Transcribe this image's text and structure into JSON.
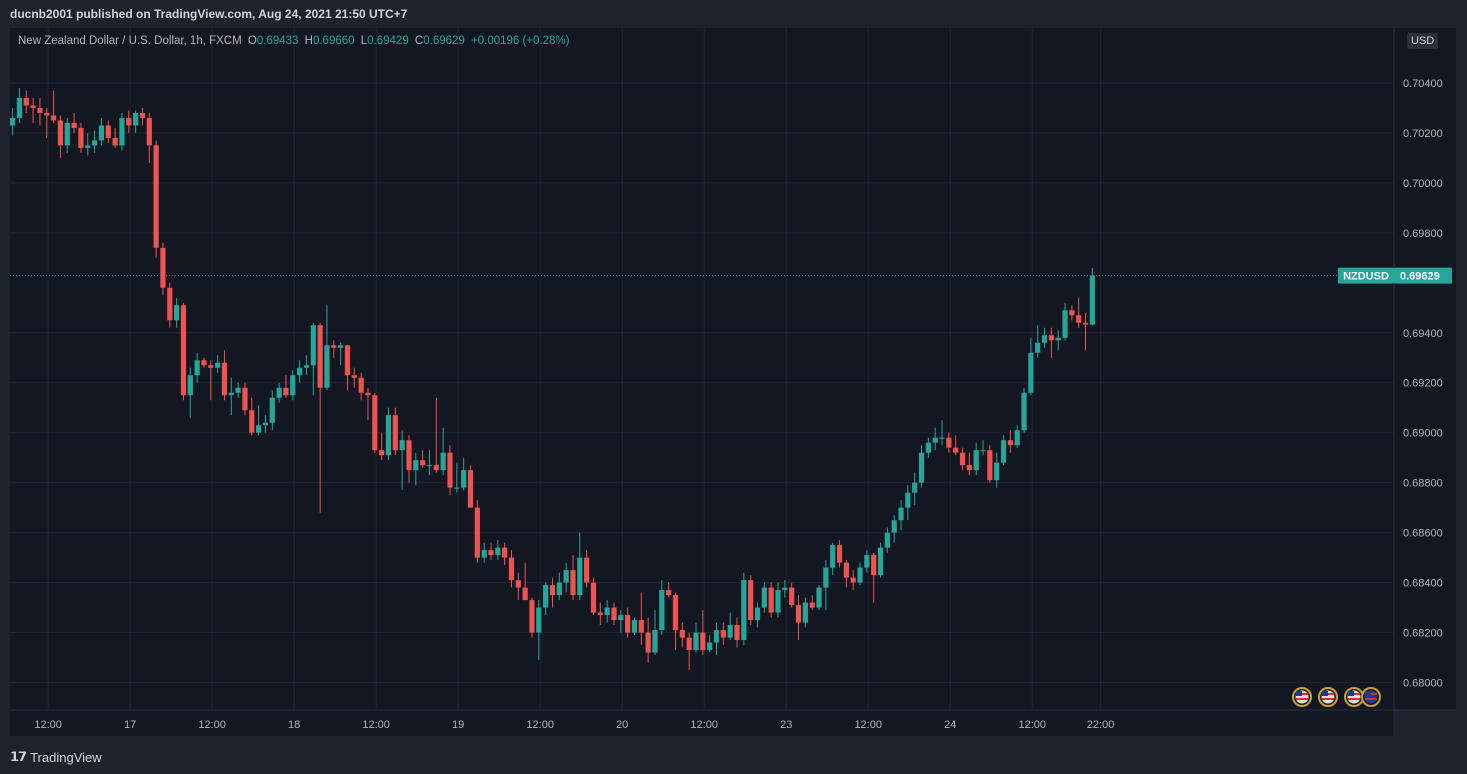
{
  "header": {
    "published": "ducnb2001 published on TradingView.com, Aug 24, 2021 21:50 UTC+7"
  },
  "legend": {
    "title": "New Zealand Dollar / U.S. Dollar, 1h, FXCM",
    "open_label": "O",
    "open": "0.69433",
    "high_label": "H",
    "high": "0.69660",
    "low_label": "L",
    "low": "0.69429",
    "close_label": "C",
    "close": "0.69629",
    "change": "+0.00196 (+0.28%)"
  },
  "currency_button": "USD",
  "price_tag": {
    "symbol": "NZDUSD",
    "price": "0.69629"
  },
  "footer": {
    "brand": "TradingView"
  },
  "colors": {
    "up": "#26a69a",
    "down": "#ef5350",
    "background": "#131722",
    "grid": "#1f2431"
  },
  "chart_data": {
    "type": "candlestick",
    "symbol": "NZDUSD",
    "interval": "1h",
    "last_price": 0.69629,
    "ylim": [
      0.6789,
      0.7062
    ],
    "y_ticks": [
      "0.70400",
      "0.70200",
      "0.70000",
      "0.69800",
      "0.69400",
      "0.69200",
      "0.69000",
      "0.68800",
      "0.68600",
      "0.68400",
      "0.68200",
      "0.68000"
    ],
    "x_ticks": [
      {
        "label": "12:00",
        "index": 5.2
      },
      {
        "label": "17",
        "index": 17.2
      },
      {
        "label": "12:00",
        "index": 29.2
      },
      {
        "label": "18",
        "index": 41.2
      },
      {
        "label": "12:00",
        "index": 53.2
      },
      {
        "label": "19",
        "index": 65.2
      },
      {
        "label": "12:00",
        "index": 77.2
      },
      {
        "label": "20",
        "index": 89.2
      },
      {
        "label": "12:00",
        "index": 101.2
      },
      {
        "label": "23",
        "index": 113.2
      },
      {
        "label": "12:00",
        "index": 125.2
      },
      {
        "label": "24",
        "index": 137.2
      },
      {
        "label": "12:00",
        "index": 149.2
      },
      {
        "label": "22:00",
        "index": 159.2
      }
    ],
    "ohlc": [
      [
        0.7023,
        0.703,
        0.7019,
        0.7026
      ],
      [
        0.7026,
        0.7038,
        0.7024,
        0.7034
      ],
      [
        0.7034,
        0.7037,
        0.7028,
        0.7031
      ],
      [
        0.7031,
        0.7034,
        0.7024,
        0.703
      ],
      [
        0.703,
        0.7034,
        0.7023,
        0.7028
      ],
      [
        0.7028,
        0.703,
        0.7018,
        0.7027
      ],
      [
        0.7027,
        0.7037,
        0.7024,
        0.7025
      ],
      [
        0.7025,
        0.7027,
        0.701,
        0.7015
      ],
      [
        0.7015,
        0.7026,
        0.7012,
        0.7024
      ],
      [
        0.7024,
        0.7028,
        0.702,
        0.7022
      ],
      [
        0.7022,
        0.7024,
        0.7012,
        0.7014
      ],
      [
        0.7014,
        0.702,
        0.7011,
        0.7015
      ],
      [
        0.7015,
        0.7021,
        0.7012,
        0.7017
      ],
      [
        0.7017,
        0.7026,
        0.7015,
        0.7023
      ],
      [
        0.7023,
        0.7025,
        0.7016,
        0.7018
      ],
      [
        0.7018,
        0.7022,
        0.7014,
        0.7015
      ],
      [
        0.7015,
        0.7028,
        0.7013,
        0.7026
      ],
      [
        0.7026,
        0.7029,
        0.702,
        0.7023
      ],
      [
        0.7023,
        0.7029,
        0.702,
        0.7028
      ],
      [
        0.7028,
        0.703,
        0.7023,
        0.7026
      ],
      [
        0.7026,
        0.7028,
        0.7008,
        0.7015
      ],
      [
        0.7015,
        0.7017,
        0.697,
        0.6974
      ],
      [
        0.6974,
        0.6976,
        0.6955,
        0.6958
      ],
      [
        0.6958,
        0.696,
        0.6942,
        0.6945
      ],
      [
        0.6945,
        0.6954,
        0.6942,
        0.6951
      ],
      [
        0.6951,
        0.6952,
        0.6913,
        0.6915
      ],
      [
        0.6915,
        0.6926,
        0.6906,
        0.6923
      ],
      [
        0.6923,
        0.6932,
        0.692,
        0.6929
      ],
      [
        0.6929,
        0.693,
        0.6926,
        0.6927
      ],
      [
        0.6927,
        0.6929,
        0.6913,
        0.6926
      ],
      [
        0.6926,
        0.6931,
        0.6924,
        0.6928
      ],
      [
        0.6928,
        0.6933,
        0.6913,
        0.6915
      ],
      [
        0.6915,
        0.6922,
        0.6907,
        0.6916
      ],
      [
        0.6916,
        0.692,
        0.6914,
        0.6918
      ],
      [
        0.6918,
        0.692,
        0.6907,
        0.6909
      ],
      [
        0.6909,
        0.6914,
        0.6899,
        0.69
      ],
      [
        0.69,
        0.6911,
        0.6899,
        0.6903
      ],
      [
        0.6903,
        0.6907,
        0.69,
        0.6904
      ],
      [
        0.6904,
        0.6917,
        0.6901,
        0.6914
      ],
      [
        0.6914,
        0.692,
        0.6912,
        0.6918
      ],
      [
        0.6918,
        0.6923,
        0.6914,
        0.6915
      ],
      [
        0.6915,
        0.6925,
        0.6913,
        0.6923
      ],
      [
        0.6923,
        0.6929,
        0.692,
        0.6926
      ],
      [
        0.6926,
        0.6931,
        0.6923,
        0.6927
      ],
      [
        0.6927,
        0.6944,
        0.6915,
        0.6943
      ],
      [
        0.6943,
        0.6944,
        0.6868,
        0.6918
      ],
      [
        0.6918,
        0.6951,
        0.6917,
        0.6935
      ],
      [
        0.6935,
        0.6937,
        0.693,
        0.6934
      ],
      [
        0.6934,
        0.6936,
        0.6927,
        0.6935
      ],
      [
        0.6935,
        0.6935,
        0.6917,
        0.6923
      ],
      [
        0.6923,
        0.6926,
        0.6918,
        0.6922
      ],
      [
        0.6922,
        0.6924,
        0.6913,
        0.6916
      ],
      [
        0.6916,
        0.6918,
        0.6905,
        0.6915
      ],
      [
        0.6915,
        0.6916,
        0.6892,
        0.6893
      ],
      [
        0.6893,
        0.69,
        0.6889,
        0.6891
      ],
      [
        0.6891,
        0.691,
        0.6889,
        0.6907
      ],
      [
        0.6907,
        0.691,
        0.6891,
        0.6893
      ],
      [
        0.6893,
        0.6901,
        0.6877,
        0.6897
      ],
      [
        0.6897,
        0.6899,
        0.688,
        0.6885
      ],
      [
        0.6885,
        0.6892,
        0.6879,
        0.6889
      ],
      [
        0.6889,
        0.6893,
        0.6886,
        0.6887
      ],
      [
        0.6887,
        0.6893,
        0.6883,
        0.6887
      ],
      [
        0.6887,
        0.6914,
        0.6884,
        0.6885
      ],
      [
        0.6885,
        0.6902,
        0.6883,
        0.6892
      ],
      [
        0.6892,
        0.6895,
        0.6875,
        0.6878
      ],
      [
        0.6878,
        0.6888,
        0.6876,
        0.6878
      ],
      [
        0.6878,
        0.689,
        0.6877,
        0.6885
      ],
      [
        0.6885,
        0.6887,
        0.687,
        0.687
      ],
      [
        0.687,
        0.6873,
        0.6848,
        0.685
      ],
      [
        0.685,
        0.6856,
        0.6848,
        0.6853
      ],
      [
        0.6853,
        0.6856,
        0.6849,
        0.6851
      ],
      [
        0.6851,
        0.6857,
        0.6849,
        0.6854
      ],
      [
        0.6854,
        0.6856,
        0.6847,
        0.685
      ],
      [
        0.685,
        0.6853,
        0.6838,
        0.6841
      ],
      [
        0.6841,
        0.6844,
        0.6833,
        0.6838
      ],
      [
        0.6838,
        0.6848,
        0.6833,
        0.6833
      ],
      [
        0.6833,
        0.6834,
        0.6818,
        0.682
      ],
      [
        0.682,
        0.6833,
        0.6809,
        0.683
      ],
      [
        0.683,
        0.684,
        0.6827,
        0.6839
      ],
      [
        0.6839,
        0.6842,
        0.683,
        0.6835
      ],
      [
        0.6835,
        0.6844,
        0.6833,
        0.684
      ],
      [
        0.684,
        0.6848,
        0.6836,
        0.6845
      ],
      [
        0.6845,
        0.6851,
        0.6833,
        0.6835
      ],
      [
        0.6835,
        0.686,
        0.6833,
        0.685
      ],
      [
        0.685,
        0.6853,
        0.6838,
        0.684
      ],
      [
        0.684,
        0.6842,
        0.6827,
        0.6828
      ],
      [
        0.6828,
        0.6832,
        0.6823,
        0.6827
      ],
      [
        0.6827,
        0.6833,
        0.6824,
        0.683
      ],
      [
        0.683,
        0.6832,
        0.6823,
        0.6825
      ],
      [
        0.6825,
        0.6829,
        0.682,
        0.6827
      ],
      [
        0.6827,
        0.683,
        0.6818,
        0.682
      ],
      [
        0.682,
        0.6826,
        0.6819,
        0.6825
      ],
      [
        0.6825,
        0.6836,
        0.6815,
        0.682
      ],
      [
        0.682,
        0.6826,
        0.6808,
        0.6812
      ],
      [
        0.6812,
        0.6829,
        0.6811,
        0.6821
      ],
      [
        0.6821,
        0.6841,
        0.6819,
        0.6837
      ],
      [
        0.6837,
        0.684,
        0.6834,
        0.6835
      ],
      [
        0.6835,
        0.6836,
        0.6813,
        0.6821
      ],
      [
        0.6821,
        0.6824,
        0.6814,
        0.6818
      ],
      [
        0.6818,
        0.682,
        0.6805,
        0.6813
      ],
      [
        0.6813,
        0.6824,
        0.6812,
        0.682
      ],
      [
        0.682,
        0.6829,
        0.6811,
        0.6813
      ],
      [
        0.6813,
        0.6819,
        0.6812,
        0.6816
      ],
      [
        0.6816,
        0.6824,
        0.6811,
        0.6821
      ],
      [
        0.6821,
        0.6824,
        0.6815,
        0.6818
      ],
      [
        0.6818,
        0.6828,
        0.6817,
        0.6823
      ],
      [
        0.6823,
        0.6826,
        0.6814,
        0.6817
      ],
      [
        0.6817,
        0.6844,
        0.6815,
        0.6841
      ],
      [
        0.6841,
        0.6843,
        0.6823,
        0.6825
      ],
      [
        0.6825,
        0.6832,
        0.6822,
        0.683
      ],
      [
        0.683,
        0.684,
        0.6828,
        0.6838
      ],
      [
        0.6838,
        0.684,
        0.6826,
        0.6828
      ],
      [
        0.6828,
        0.684,
        0.6826,
        0.6837
      ],
      [
        0.6837,
        0.6841,
        0.6834,
        0.6838
      ],
      [
        0.6838,
        0.684,
        0.683,
        0.6831
      ],
      [
        0.6831,
        0.6835,
        0.6817,
        0.6824
      ],
      [
        0.6824,
        0.6834,
        0.6822,
        0.6832
      ],
      [
        0.6832,
        0.6835,
        0.6829,
        0.683
      ],
      [
        0.683,
        0.6839,
        0.6829,
        0.6838
      ],
      [
        0.6838,
        0.6849,
        0.6829,
        0.6846
      ],
      [
        0.6846,
        0.6856,
        0.6843,
        0.6855
      ],
      [
        0.6855,
        0.6857,
        0.6846,
        0.6848
      ],
      [
        0.6848,
        0.6849,
        0.6838,
        0.6842
      ],
      [
        0.6842,
        0.6845,
        0.6837,
        0.684
      ],
      [
        0.684,
        0.6848,
        0.6839,
        0.6846
      ],
      [
        0.6846,
        0.6853,
        0.6844,
        0.6851
      ],
      [
        0.6851,
        0.6852,
        0.6832,
        0.6843
      ],
      [
        0.6843,
        0.6856,
        0.6842,
        0.6854
      ],
      [
        0.6854,
        0.6862,
        0.6852,
        0.686
      ],
      [
        0.686,
        0.6867,
        0.6856,
        0.6865
      ],
      [
        0.6865,
        0.6873,
        0.6861,
        0.687
      ],
      [
        0.687,
        0.6879,
        0.6865,
        0.6876
      ],
      [
        0.6876,
        0.6884,
        0.6871,
        0.688
      ],
      [
        0.688,
        0.6895,
        0.6878,
        0.6892
      ],
      [
        0.6892,
        0.6898,
        0.689,
        0.6896
      ],
      [
        0.6896,
        0.6902,
        0.6893,
        0.6898
      ],
      [
        0.6898,
        0.6905,
        0.6895,
        0.6898
      ],
      [
        0.6898,
        0.69,
        0.6892,
        0.6894
      ],
      [
        0.6894,
        0.6899,
        0.6891,
        0.6892
      ],
      [
        0.6892,
        0.6894,
        0.6885,
        0.6887
      ],
      [
        0.6887,
        0.6892,
        0.6883,
        0.6885
      ],
      [
        0.6885,
        0.6896,
        0.6883,
        0.6893
      ],
      [
        0.6893,
        0.6897,
        0.6891,
        0.6893
      ],
      [
        0.6893,
        0.6895,
        0.688,
        0.6881
      ],
      [
        0.6881,
        0.6892,
        0.6878,
        0.6888
      ],
      [
        0.6888,
        0.6899,
        0.6887,
        0.6897
      ],
      [
        0.6897,
        0.6901,
        0.6892,
        0.6895
      ],
      [
        0.6895,
        0.6903,
        0.6894,
        0.6901
      ],
      [
        0.6901,
        0.6918,
        0.69,
        0.6916
      ],
      [
        0.6916,
        0.6938,
        0.6915,
        0.6932
      ],
      [
        0.6932,
        0.6943,
        0.693,
        0.6936
      ],
      [
        0.6936,
        0.6942,
        0.6934,
        0.6939
      ],
      [
        0.6939,
        0.6942,
        0.693,
        0.6937
      ],
      [
        0.6937,
        0.6941,
        0.6933,
        0.6938
      ],
      [
        0.6938,
        0.6952,
        0.6937,
        0.6949
      ],
      [
        0.6949,
        0.6951,
        0.6945,
        0.6947
      ],
      [
        0.6947,
        0.6954,
        0.6942,
        0.6944
      ],
      [
        0.6944,
        0.6948,
        0.6933,
        0.69433
      ],
      [
        0.69433,
        0.6966,
        0.69429,
        0.69629
      ]
    ]
  }
}
